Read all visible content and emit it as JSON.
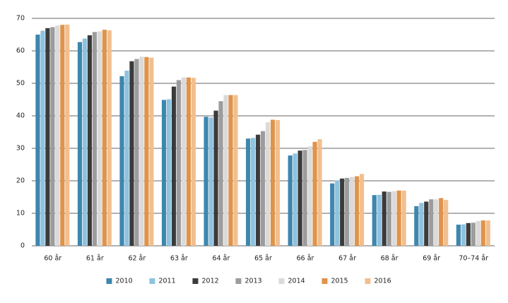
{
  "chart_data": {
    "type": "bar",
    "categories": [
      "60 år",
      "61 år",
      "62 år",
      "63 år",
      "64 år",
      "65 år",
      "66 år",
      "67 år",
      "68 år",
      "69 år",
      "70–74 år"
    ],
    "series": [
      {
        "name": "2010",
        "color": "#3d87ae",
        "values": [
          65.0,
          62.7,
          52.2,
          44.9,
          39.7,
          33.0,
          27.8,
          19.2,
          15.6,
          12.2,
          6.5
        ]
      },
      {
        "name": "2011",
        "color": "#8fc2df",
        "values": [
          66.2,
          63.8,
          53.9,
          45.1,
          39.5,
          33.2,
          28.4,
          20.1,
          15.7,
          13.2,
          6.6
        ]
      },
      {
        "name": "2012",
        "color": "#3b3b3b",
        "values": [
          67.0,
          64.8,
          56.8,
          49.0,
          41.6,
          34.2,
          29.3,
          20.7,
          16.7,
          13.6,
          7.0
        ]
      },
      {
        "name": "2013",
        "color": "#9c9c9c",
        "values": [
          67.3,
          65.8,
          57.5,
          51.0,
          44.5,
          35.3,
          29.5,
          20.9,
          16.6,
          14.3,
          7.1
        ]
      },
      {
        "name": "2014",
        "color": "#dadada",
        "values": [
          67.8,
          66.0,
          58.2,
          51.8,
          46.4,
          38.0,
          30.6,
          21.2,
          16.8,
          14.3,
          7.6
        ]
      },
      {
        "name": "2015",
        "color": "#e0934a",
        "values": [
          68.0,
          66.5,
          58.1,
          51.8,
          46.4,
          38.8,
          32.0,
          21.4,
          17.0,
          14.7,
          7.8
        ]
      },
      {
        "name": "2016",
        "color": "#f1bf8e",
        "values": [
          68.1,
          66.3,
          57.9,
          51.7,
          46.4,
          38.7,
          32.8,
          22.1,
          17.0,
          14.1,
          7.8
        ]
      }
    ],
    "ylim": [
      0,
      70
    ],
    "yticks": [
      0,
      10,
      20,
      30,
      40,
      50,
      60,
      70
    ],
    "grid": true,
    "legend": "bottom"
  }
}
